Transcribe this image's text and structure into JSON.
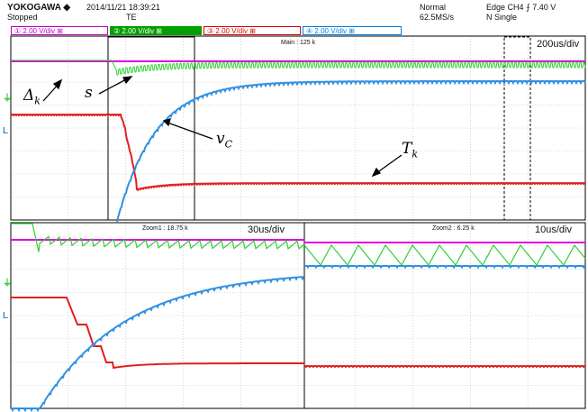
{
  "header": {
    "brand": "YOKOGAWA ◆",
    "datetime": "2014/11/21 18:39:21",
    "status": "Stopped",
    "status_sub": "TE",
    "acq_mode": "Normal",
    "sample_rate": "62.5MS/s",
    "trigger": "Edge CH4 ⨍ 7.40 V",
    "trigger_mode": "N Single"
  },
  "channels": [
    {
      "label": "① 2.00 V/div  ⊞",
      "color": "#c000c0"
    },
    {
      "label": "② 2.00 V/div  ⊞",
      "color": "#00a000"
    },
    {
      "label": "③ 2.00 V/div  ⊞",
      "color": "#e00000"
    },
    {
      "label": "④ 2.00 V/div  ⊞",
      "color": "#0080e0"
    }
  ],
  "main": {
    "label": "Main : 125 k",
    "timebase": "200us/div"
  },
  "zoom1": {
    "label": "Zoom1 : 18.75 k",
    "timebase": "30us/div"
  },
  "zoom2": {
    "label": "Zoom2 : 6.25 k",
    "timebase": "10us/div"
  },
  "annotations": {
    "delta_k": "Δ",
    "delta_k_sub": "k",
    "s": "s",
    "v_c": "v",
    "v_c_sub": "C",
    "t_k": "T",
    "t_k_sub": "k"
  },
  "colors": {
    "ch1": "#e000e0",
    "ch2": "#30d030",
    "ch3": "#e02020",
    "ch4": "#3090e0",
    "grid": "#b8b8b8",
    "frame": "#000000"
  }
}
